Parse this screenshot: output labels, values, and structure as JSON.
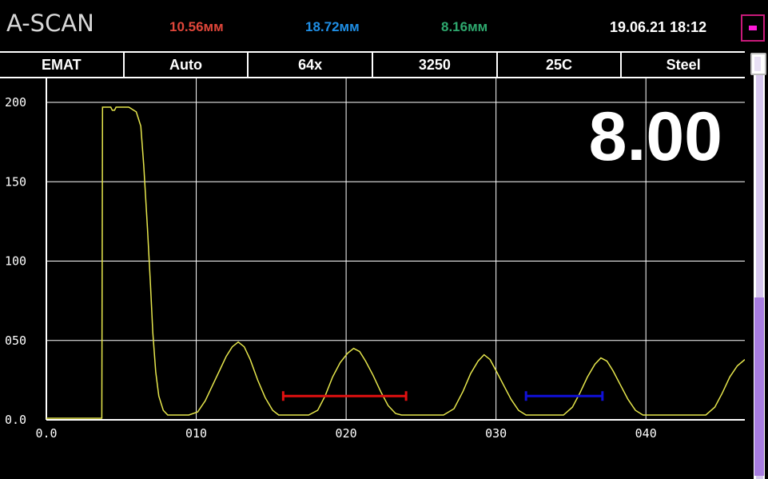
{
  "header": {
    "title": "A-SCAN",
    "measure_1": "10.56мм",
    "measure_2": "18.72мм",
    "measure_3": "8.16мм",
    "datetime": "19.06.21  18:12",
    "colors": {
      "measure_1": "#e0463a",
      "measure_2": "#1f8fe6",
      "measure_3": "#2ea86e",
      "indicator": "#ff1ad8"
    }
  },
  "status": {
    "mode": "EMAT",
    "gain_mode": "Auto",
    "averaging": "64x",
    "velocity": "3250",
    "temperature": "25C",
    "material": "Steel"
  },
  "readout": "8.00",
  "scrollbar": {
    "position_fraction": 0.45,
    "colors": {
      "track": "#d7c8ef",
      "fill": "#a77de0"
    }
  },
  "chart_data": {
    "type": "line",
    "title": "",
    "xlabel": "",
    "ylabel": "",
    "xlim": [
      0,
      46.6
    ],
    "ylim": [
      0,
      200
    ],
    "x_ticks": [
      "0.0",
      "010",
      "020",
      "030",
      "040"
    ],
    "x_tick_values": [
      0,
      10,
      20,
      30,
      40
    ],
    "y_ticks": [
      "0.0",
      "050",
      "100",
      "150",
      "200"
    ],
    "y_tick_values": [
      0,
      50,
      100,
      150,
      200
    ],
    "grid": true,
    "series": [
      {
        "color": "#e6e64c",
        "points": [
          [
            0,
            1
          ],
          [
            3.7,
            1
          ],
          [
            3.75,
            197
          ],
          [
            4.0,
            197
          ],
          [
            4.3,
            197
          ],
          [
            4.4,
            195
          ],
          [
            4.55,
            195
          ],
          [
            4.65,
            197
          ],
          [
            5.2,
            197
          ],
          [
            5.5,
            197
          ],
          [
            6.0,
            194
          ],
          [
            6.3,
            185
          ],
          [
            6.5,
            160
          ],
          [
            6.75,
            120
          ],
          [
            6.95,
            85
          ],
          [
            7.1,
            55
          ],
          [
            7.3,
            30
          ],
          [
            7.5,
            15
          ],
          [
            7.8,
            6
          ],
          [
            8.1,
            3
          ],
          [
            9.5,
            3
          ],
          [
            10.1,
            5
          ],
          [
            10.6,
            12
          ],
          [
            11.1,
            22
          ],
          [
            11.6,
            32
          ],
          [
            12.0,
            40
          ],
          [
            12.4,
            46
          ],
          [
            12.8,
            49
          ],
          [
            13.2,
            46
          ],
          [
            13.6,
            38
          ],
          [
            14.1,
            25
          ],
          [
            14.6,
            14
          ],
          [
            15.1,
            6
          ],
          [
            15.5,
            3
          ],
          [
            17.5,
            3
          ],
          [
            18.1,
            6
          ],
          [
            18.6,
            15
          ],
          [
            19.1,
            27
          ],
          [
            19.6,
            36
          ],
          [
            20.1,
            42
          ],
          [
            20.5,
            45
          ],
          [
            20.9,
            43
          ],
          [
            21.3,
            37
          ],
          [
            21.8,
            28
          ],
          [
            22.3,
            18
          ],
          [
            22.8,
            9
          ],
          [
            23.3,
            4
          ],
          [
            23.7,
            3
          ],
          [
            26.5,
            3
          ],
          [
            27.2,
            7
          ],
          [
            27.8,
            18
          ],
          [
            28.3,
            29
          ],
          [
            28.8,
            37
          ],
          [
            29.2,
            41
          ],
          [
            29.6,
            38
          ],
          [
            30.0,
            31
          ],
          [
            30.5,
            22
          ],
          [
            31.0,
            13
          ],
          [
            31.5,
            6
          ],
          [
            32.0,
            3
          ],
          [
            34.5,
            3
          ],
          [
            35.1,
            8
          ],
          [
            35.6,
            17
          ],
          [
            36.1,
            27
          ],
          [
            36.6,
            35
          ],
          [
            37.0,
            39
          ],
          [
            37.4,
            37
          ],
          [
            37.8,
            31
          ],
          [
            38.3,
            22
          ],
          [
            38.8,
            13
          ],
          [
            39.3,
            6
          ],
          [
            39.8,
            3
          ],
          [
            44.0,
            3
          ],
          [
            44.6,
            8
          ],
          [
            45.1,
            17
          ],
          [
            45.6,
            27
          ],
          [
            46.1,
            34
          ],
          [
            46.6,
            38
          ]
        ]
      }
    ],
    "markers": [
      {
        "color": "#e01010",
        "x_start": 15.8,
        "x_end": 24.0,
        "y": 15
      },
      {
        "color": "#1010d8",
        "x_start": 32.0,
        "x_end": 37.1,
        "y": 15
      }
    ]
  }
}
